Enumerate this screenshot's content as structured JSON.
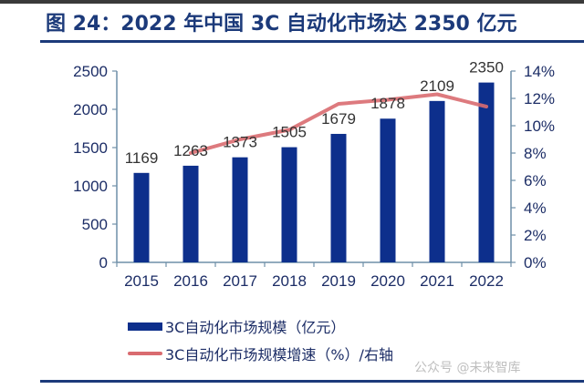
{
  "title": "图 24：2022 年中国 3C 自动化市场达 2350 亿元",
  "watermark": "公众号 @未来智库",
  "colors": {
    "bar": "#0d2f8c",
    "line": "#d96b70",
    "axis": "#6f8fa8",
    "tick_text": "#1c2d66",
    "label_text": "#333333",
    "title": "#1c3a7a"
  },
  "legend": {
    "bar_label": "3C自动化市场规模（亿元）",
    "line_label": "3C自动化市场规模增速（%）/右轴"
  },
  "chart_data": {
    "type": "bar",
    "title": "图 24：2022 年中国 3C 自动化市场达 2350 亿元",
    "categories": [
      "2015",
      "2016",
      "2017",
      "2018",
      "2019",
      "2020",
      "2021",
      "2022"
    ],
    "series": [
      {
        "name": "3C自动化市场规模（亿元）",
        "type": "bar",
        "axis": "left",
        "values": [
          1169,
          1263,
          1373,
          1505,
          1679,
          1878,
          2109,
          2350
        ],
        "data_labels": [
          "1169",
          "1263",
          "1373",
          "1505",
          "1679",
          "1878",
          "2109",
          "2350"
        ]
      },
      {
        "name": "3C自动化市场规模增速（%）/右轴",
        "type": "line",
        "axis": "right",
        "values": [
          null,
          8.0,
          9.0,
          9.7,
          11.6,
          11.9,
          12.3,
          11.4
        ]
      }
    ],
    "ylim_left": [
      0,
      2500
    ],
    "yticks_left": [
      "0",
      "500",
      "1000",
      "1500",
      "2000",
      "2500"
    ],
    "ytick_values_left": [
      0,
      500,
      1000,
      1500,
      2000,
      2500
    ],
    "ylim_right": [
      0,
      14
    ],
    "yticks_right": [
      "0%",
      "2%",
      "4%",
      "6%",
      "8%",
      "10%",
      "12%",
      "14%"
    ],
    "ytick_values_right": [
      0,
      2,
      4,
      6,
      8,
      10,
      12,
      14
    ],
    "xlabel": "",
    "ylabel": "",
    "grid": false,
    "legend_position": "bottom"
  }
}
